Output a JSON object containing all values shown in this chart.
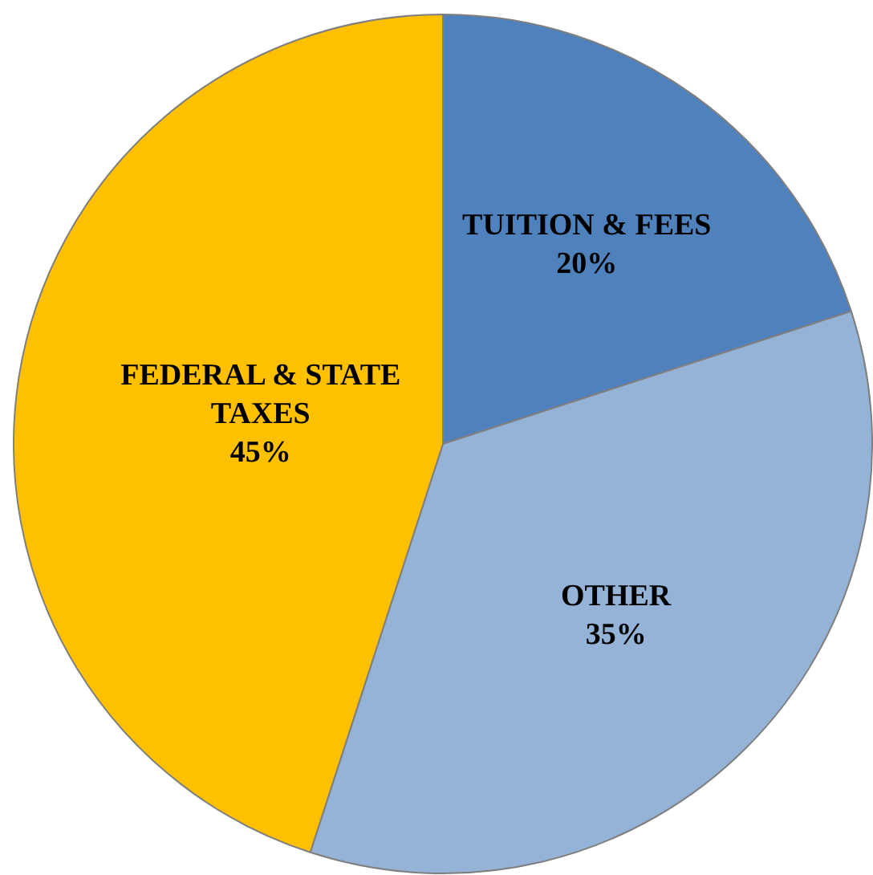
{
  "chart_data": {
    "type": "pie",
    "categories": [
      "TUITION & FEES",
      "OTHER",
      "FEDERAL & STATE TAXES"
    ],
    "values": [
      20,
      35,
      45
    ],
    "colors": [
      "#4f81bd",
      "#95b3d7",
      "#ffc000"
    ],
    "value_labels": [
      "20%",
      "35%",
      "45%"
    ],
    "legend": false
  }
}
